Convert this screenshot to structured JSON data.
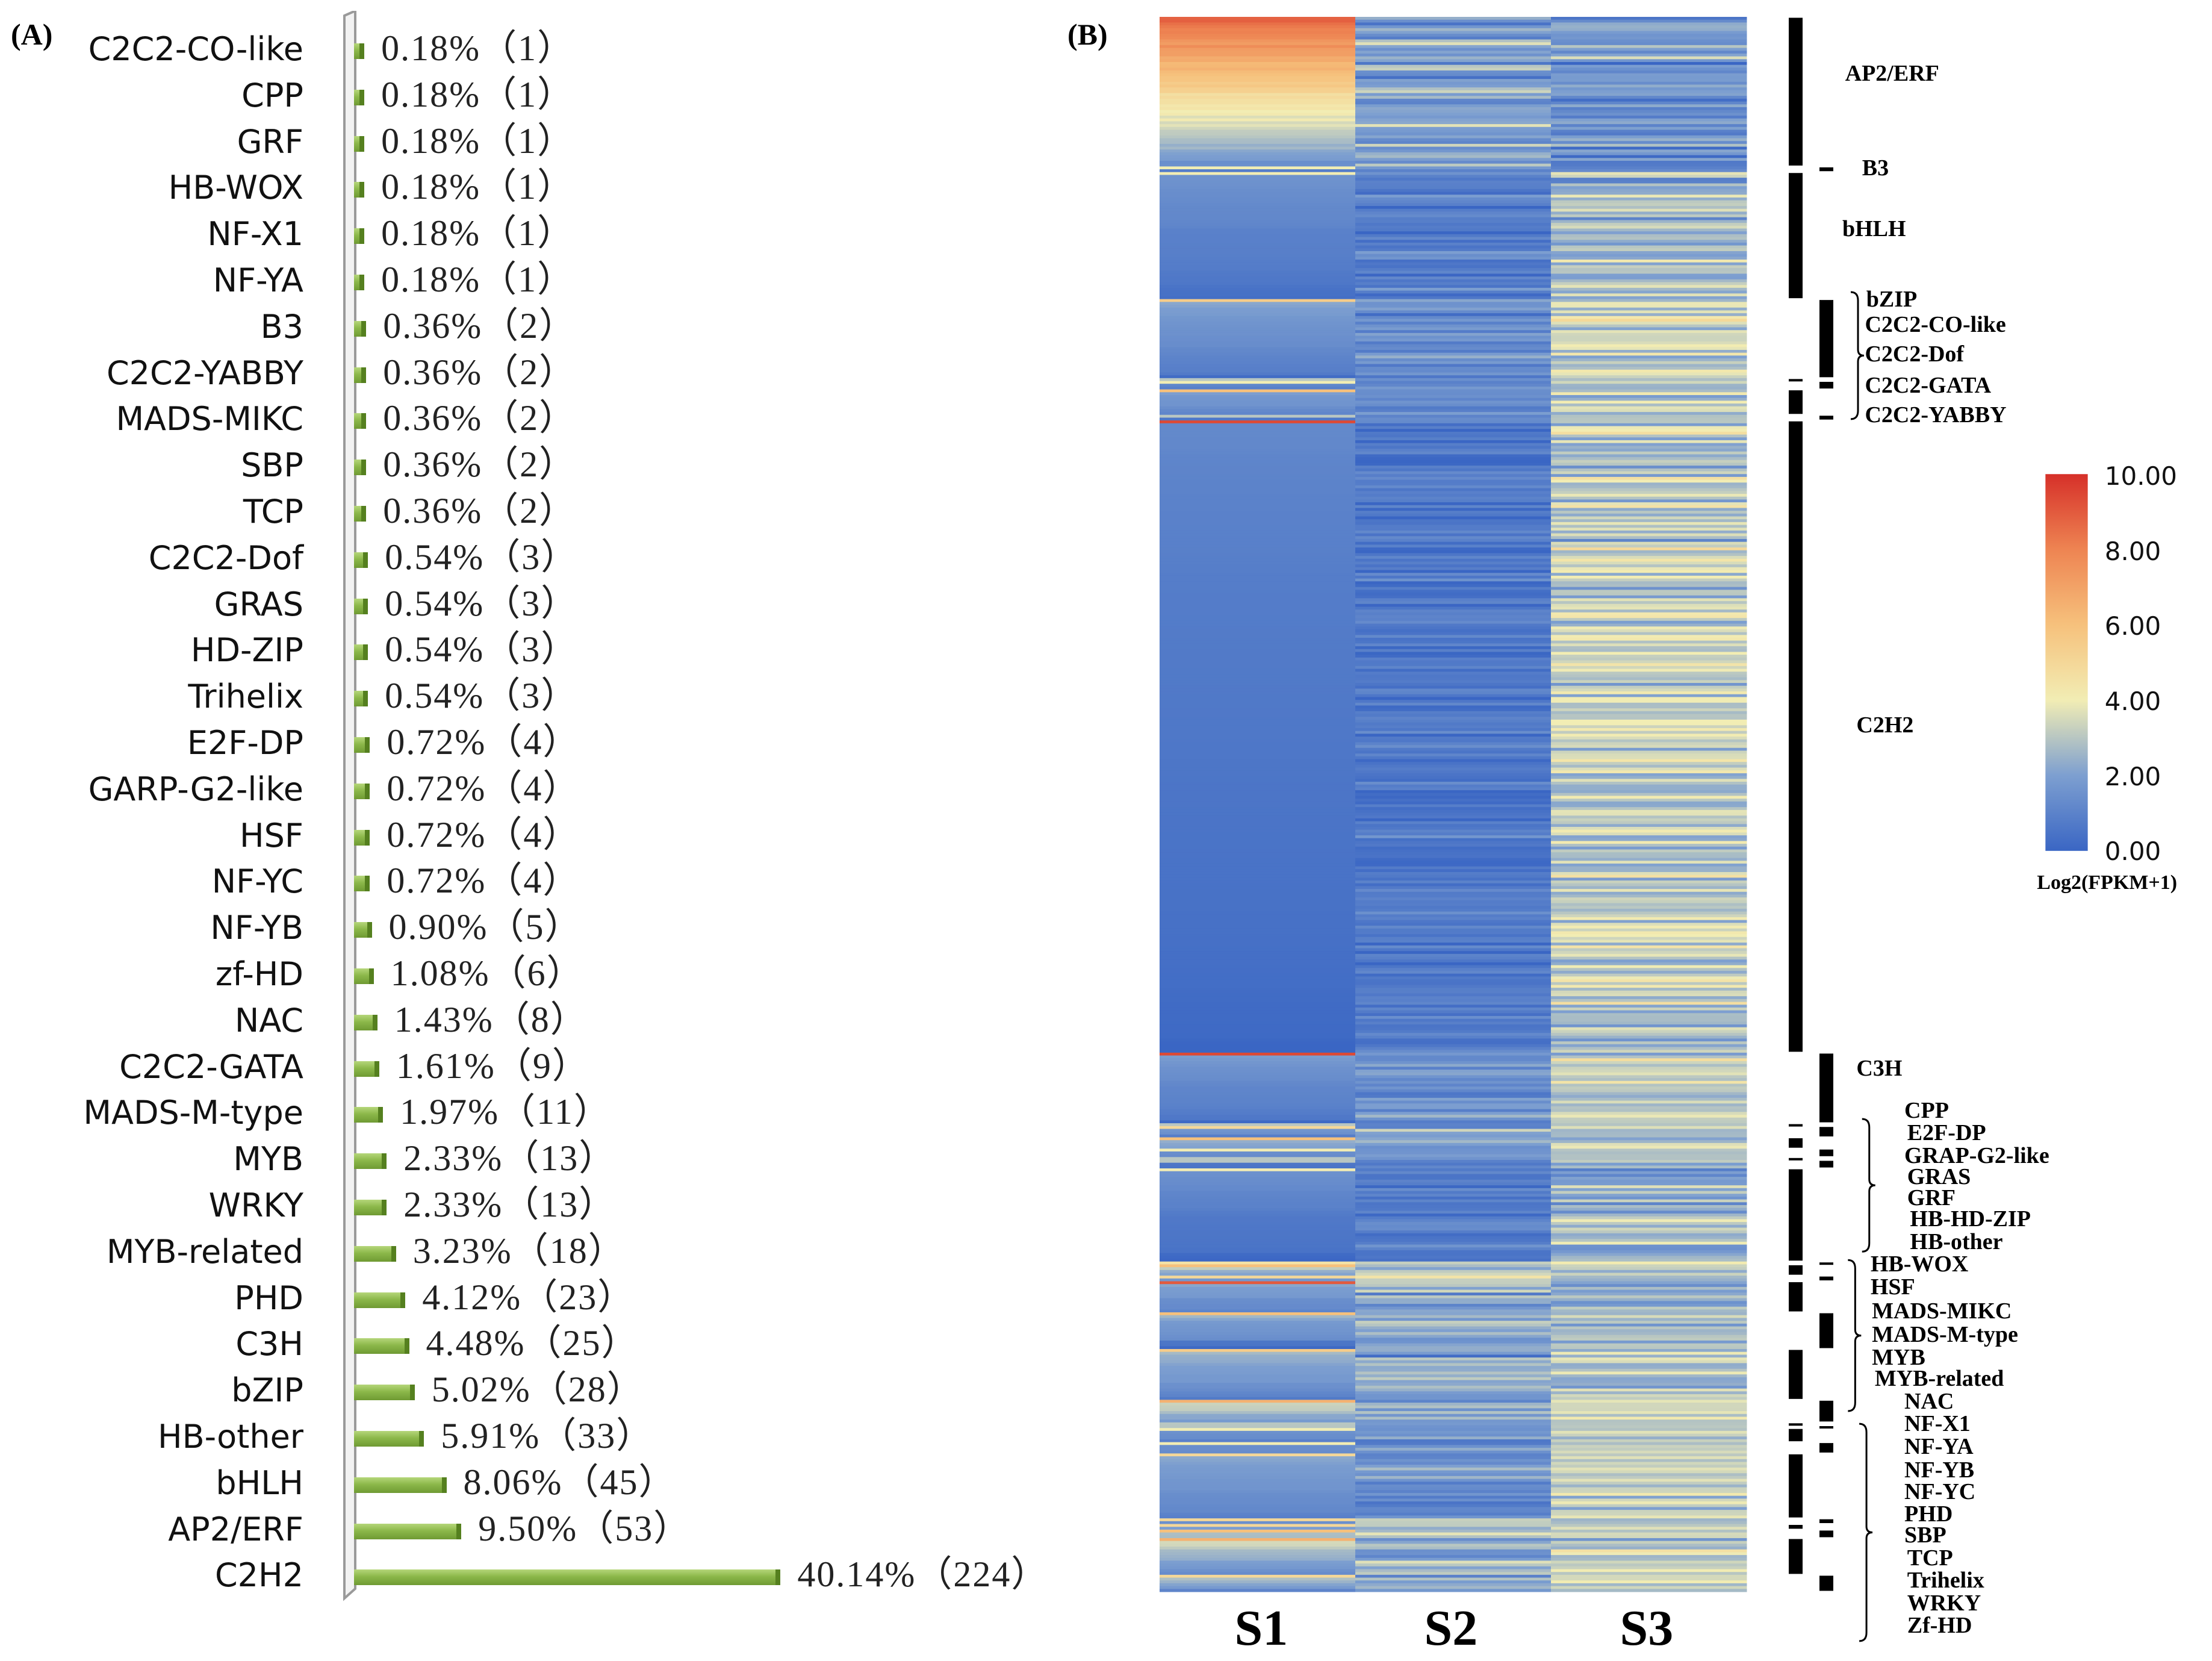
{
  "panels": {
    "a_label": "(A)",
    "b_label": "(B)"
  },
  "chart_data": [
    {
      "type": "bar",
      "orientation": "horizontal",
      "title": "",
      "categories": [
        "C2C2-CO-like",
        "CPP",
        "GRF",
        "HB-WOX",
        "NF-X1",
        "NF-YA",
        "B3",
        "C2C2-YABBY",
        "MADS-MIKC",
        "SBP",
        "TCP",
        "C2C2-Dof",
        "GRAS",
        "HD-ZIP",
        "Trihelix",
        "E2F-DP",
        "GARP-G2-like",
        "HSF",
        "NF-YC",
        "NF-YB",
        "zf-HD",
        "NAC",
        "C2C2-GATA",
        "MADS-M-type",
        "MYB",
        "WRKY",
        "MYB-related",
        "PHD",
        "C3H",
        "bZIP",
        "HB-other",
        "bHLH",
        "AP2/ERF",
        "C2H2"
      ],
      "values": [
        1,
        1,
        1,
        1,
        1,
        1,
        2,
        2,
        2,
        2,
        2,
        3,
        3,
        3,
        3,
        4,
        4,
        4,
        4,
        5,
        6,
        8,
        9,
        11,
        13,
        13,
        18,
        23,
        25,
        28,
        33,
        45,
        53,
        224
      ],
      "percent_labels": [
        "0.18%",
        "0.18%",
        "0.18%",
        "0.18%",
        "0.18%",
        "0.18%",
        "0.36%",
        "0.36%",
        "0.36%",
        "0.36%",
        "0.36%",
        "0.54%",
        "0.54%",
        "0.54%",
        "0.54%",
        "0.72%",
        "0.72%",
        "0.72%",
        "0.72%",
        "0.90%",
        "1.08%",
        "1.43%",
        "1.61%",
        "1.97%",
        "2.33%",
        "2.33%",
        "3.23%",
        "4.12%",
        "4.48%",
        "5.02%",
        "5.91%",
        "8.06%",
        "9.50%",
        "40.14%"
      ],
      "bar_color": "#8cb84a",
      "xlim": [
        0,
        224
      ]
    },
    {
      "type": "heatmap",
      "columns": [
        "S1",
        "S2",
        "S3"
      ],
      "colorbar": {
        "title": "Log2(FPKM+1)",
        "ticks": [
          "10.00",
          "8.00",
          "6.00",
          "4.00",
          "2.00",
          "0.00"
        ],
        "range": [
          0,
          10
        ],
        "colors": [
          "#3a66c4",
          "#7d9fd0",
          "#f2edb4",
          "#f6c17c",
          "#ee8452",
          "#d63029"
        ]
      },
      "families": [
        {
          "name": "AP2/ERF",
          "genes": 53,
          "mean": [
            5.0,
            2.0,
            1.6
          ],
          "spread": [
            2.6,
            1.4,
            1.3
          ],
          "peak": 8.8
        },
        {
          "name": "B3",
          "genes": 2,
          "mean": [
            1.0,
            1.2,
            1.2
          ],
          "spread": [
            0.4,
            0.5,
            0.5
          ],
          "peak": 4
        },
        {
          "name": "bHLH",
          "genes": 45,
          "mean": [
            1.0,
            1.0,
            2.6
          ],
          "spread": [
            0.6,
            0.8,
            1.2
          ],
          "peak": 4
        },
        {
          "name": "bZIP",
          "genes": 28,
          "mean": [
            1.4,
            1.6,
            3.2
          ],
          "spread": [
            0.8,
            1.0,
            1.3
          ],
          "peak": 5.5
        },
        {
          "name": "C2C2-CO-like",
          "genes": 1,
          "mean": [
            1.0,
            1.5,
            3.0
          ],
          "spread": [
            0.3,
            0.5,
            0.5
          ],
          "peak": 3
        },
        {
          "name": "C2C2-Dof",
          "genes": 3,
          "mean": [
            1.2,
            1.5,
            3.0
          ],
          "spread": [
            0.5,
            0.8,
            1.0
          ],
          "peak": 4
        },
        {
          "name": "C2C2-GATA",
          "genes": 9,
          "mean": [
            1.3,
            1.4,
            3.0
          ],
          "spread": [
            0.8,
            0.9,
            1.1
          ],
          "peak": 6
        },
        {
          "name": "C2C2-YABBY",
          "genes": 2,
          "mean": [
            1.0,
            1.2,
            2.8
          ],
          "spread": [
            0.5,
            0.5,
            0.8
          ],
          "peak": 3
        },
        {
          "name": "C2H2",
          "genes": 224,
          "mean": [
            0.6,
            0.7,
            3.0
          ],
          "spread": [
            0.5,
            0.7,
            1.3
          ],
          "peak": 9.4
        },
        {
          "name": "C3H",
          "genes": 25,
          "mean": [
            1.2,
            1.5,
            3.0
          ],
          "spread": [
            0.8,
            1.0,
            1.2
          ],
          "peak": 9.4
        },
        {
          "name": "CPP",
          "genes": 1,
          "mean": [
            1.5,
            1.5,
            3.0
          ],
          "spread": [
            0.4,
            0.4,
            0.5
          ],
          "peak": 3
        },
        {
          "name": "E2F-DP",
          "genes": 4,
          "mean": [
            1.8,
            2.0,
            3.2
          ],
          "spread": [
            1.0,
            1.0,
            1.0
          ],
          "peak": 5
        },
        {
          "name": "GRAP-G2-like",
          "genes": 4,
          "mean": [
            2.0,
            2.2,
            3.4
          ],
          "spread": [
            1.2,
            1.2,
            1.0
          ],
          "peak": 6
        },
        {
          "name": "GRAS",
          "genes": 3,
          "mean": [
            1.5,
            1.8,
            3.0
          ],
          "spread": [
            0.8,
            0.8,
            1.0
          ],
          "peak": 4
        },
        {
          "name": "GRF",
          "genes": 1,
          "mean": [
            1.2,
            1.5,
            3.0
          ],
          "spread": [
            0.3,
            0.3,
            0.3
          ],
          "peak": 3
        },
        {
          "name": "HB-HD-ZIP",
          "genes": 3,
          "mean": [
            1.0,
            1.2,
            2.8
          ],
          "spread": [
            0.5,
            0.6,
            0.8
          ],
          "peak": 3
        },
        {
          "name": "HB-other",
          "genes": 33,
          "mean": [
            0.8,
            0.8,
            2.6
          ],
          "spread": [
            0.6,
            0.7,
            1.2
          ],
          "peak": 4
        },
        {
          "name": "HB-WOX",
          "genes": 1,
          "mean": [
            4.0,
            3.5,
            4.0
          ],
          "spread": [
            0.3,
            0.3,
            0.3
          ],
          "peak": 4.5
        },
        {
          "name": "HSF",
          "genes": 4,
          "mean": [
            2.5,
            2.5,
            3.5
          ],
          "spread": [
            1.2,
            1.2,
            1.0
          ],
          "peak": 6
        },
        {
          "name": "MADS-MIKC",
          "genes": 2,
          "mean": [
            2.5,
            3.0,
            3.0
          ],
          "spread": [
            1.0,
            1.0,
            1.0
          ],
          "peak": 5
        },
        {
          "name": "MADS-M-type",
          "genes": 11,
          "mean": [
            1.8,
            2.0,
            2.6
          ],
          "spread": [
            1.2,
            1.2,
            1.2
          ],
          "peak": 9
        },
        {
          "name": "MYB",
          "genes": 13,
          "mean": [
            2.0,
            2.2,
            3.0
          ],
          "spread": [
            1.3,
            1.2,
            1.2
          ],
          "peak": 6
        },
        {
          "name": "MYB-related",
          "genes": 18,
          "mean": [
            1.8,
            2.0,
            3.0
          ],
          "spread": [
            1.2,
            1.2,
            1.2
          ],
          "peak": 5.5
        },
        {
          "name": "NAC",
          "genes": 8,
          "mean": [
            2.8,
            2.5,
            3.2
          ],
          "spread": [
            1.3,
            1.2,
            1.0
          ],
          "peak": 6.5
        },
        {
          "name": "NF-X1",
          "genes": 1,
          "mean": [
            1.5,
            1.5,
            3.0
          ],
          "spread": [
            0.3,
            0.3,
            0.3
          ],
          "peak": 3
        },
        {
          "name": "NF-YA",
          "genes": 1,
          "mean": [
            1.5,
            1.6,
            3.0
          ],
          "spread": [
            0.3,
            0.3,
            0.3
          ],
          "peak": 3
        },
        {
          "name": "NF-YB",
          "genes": 5,
          "mean": [
            1.5,
            1.6,
            3.0
          ],
          "spread": [
            0.8,
            0.8,
            1.0
          ],
          "peak": 4
        },
        {
          "name": "NF-YC",
          "genes": 4,
          "mean": [
            1.5,
            1.6,
            3.0
          ],
          "spread": [
            0.8,
            0.8,
            1.0
          ],
          "peak": 4
        },
        {
          "name": "PHD",
          "genes": 23,
          "mean": [
            1.6,
            1.5,
            3.0
          ],
          "spread": [
            0.9,
            0.9,
            1.1
          ],
          "peak": 5
        },
        {
          "name": "SBP",
          "genes": 2,
          "mean": [
            2.5,
            2.5,
            3.5
          ],
          "spread": [
            1.0,
            1.0,
            1.0
          ],
          "peak": 5
        },
        {
          "name": "TCP",
          "genes": 2,
          "mean": [
            2.5,
            2.5,
            3.5
          ],
          "spread": [
            1.0,
            1.0,
            1.0
          ],
          "peak": 5
        },
        {
          "name": "Trihelix",
          "genes": 3,
          "mean": [
            3.0,
            2.8,
            3.5
          ],
          "spread": [
            1.0,
            1.0,
            1.0
          ],
          "peak": 6
        },
        {
          "name": "WRKY",
          "genes": 13,
          "mean": [
            2.5,
            2.5,
            3.2
          ],
          "spread": [
            1.4,
            1.3,
            1.1
          ],
          "peak": 6.5
        },
        {
          "name": "Zf-HD",
          "genes": 6,
          "mean": [
            2.2,
            2.2,
            3.2
          ],
          "spread": [
            1.0,
            1.0,
            1.0
          ],
          "peak": 5
        }
      ]
    }
  ]
}
